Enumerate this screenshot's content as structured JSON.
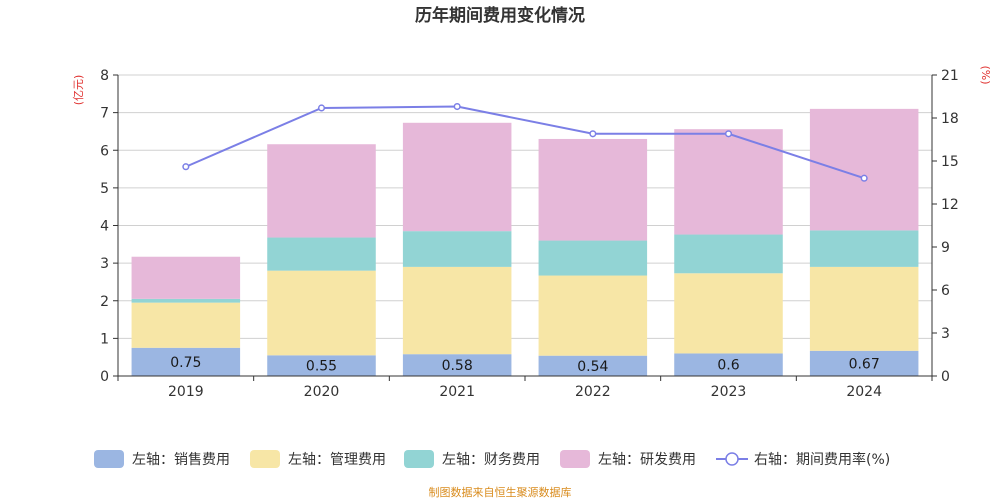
{
  "title": "历年期间费用变化情况",
  "source": "制图数据来自恒生聚源数据库",
  "left_axis_unit": "(亿元)",
  "right_axis_unit": "(%)",
  "colors": {
    "sales": "#9bb6e2",
    "admin": "#f7e6a6",
    "finance": "#92d4d4",
    "rnd": "#e6b8d9",
    "rate": "#7b7fe6"
  },
  "chart_data": {
    "type": "bar",
    "categories": [
      "2019",
      "2020",
      "2021",
      "2022",
      "2023",
      "2024"
    ],
    "series": [
      {
        "name": "左轴：销售费用",
        "key": "sales",
        "values": [
          0.75,
          0.55,
          0.58,
          0.54,
          0.6,
          0.67
        ],
        "show_labels": true
      },
      {
        "name": "左轴：管理费用",
        "key": "admin",
        "values": [
          1.2,
          2.25,
          2.32,
          2.13,
          2.13,
          2.23
        ]
      },
      {
        "name": "左轴：财务费用",
        "key": "finance",
        "values": [
          0.1,
          0.88,
          0.95,
          0.93,
          1.03,
          0.97
        ]
      },
      {
        "name": "左轴：研发费用",
        "key": "rnd",
        "values": [
          1.12,
          2.48,
          2.88,
          2.7,
          2.8,
          3.23
        ]
      },
      {
        "name": "右轴：期间费用率(%)",
        "key": "rate",
        "type": "line",
        "axis": "right",
        "values": [
          14.6,
          18.7,
          18.8,
          16.9,
          16.9,
          13.8
        ]
      }
    ],
    "left_axis": {
      "ylim": [
        0,
        8
      ],
      "ticks": [
        0,
        1,
        2,
        3,
        4,
        5,
        6,
        7,
        8
      ]
    },
    "right_axis": {
      "ylim": [
        0,
        21
      ],
      "ticks": [
        0,
        3,
        6,
        9,
        12,
        15,
        18,
        21
      ]
    },
    "grid": true,
    "legend_position": "bottom"
  }
}
